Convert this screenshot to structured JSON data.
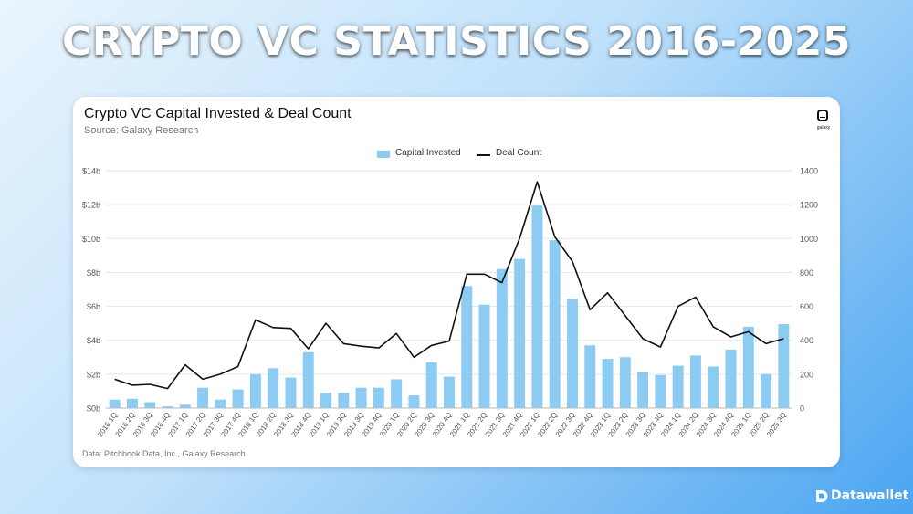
{
  "banner": {
    "title": "CRYPTO VC STATISTICS 2016-2025"
  },
  "logo": {
    "text": "galaxy"
  },
  "brand": {
    "label": "Datawallet"
  },
  "colors": {
    "bar": "#8ccbf2",
    "line": "#111111",
    "grid": "#e6e6e6"
  },
  "chart_data": {
    "type": "bar+line",
    "title": "Crypto VC Capital Invested & Deal Count",
    "subtitle": "Source: Galaxy Research",
    "footnote": "Data: Pitchbook Data, Inc., Galaxy Research",
    "legend": {
      "placement": "top-center",
      "entries": [
        "Capital Invested",
        "Deal Count"
      ]
    },
    "grid": true,
    "categories": [
      "2016 1Q",
      "2016 2Q",
      "2016 3Q",
      "2016 4Q",
      "2017 1Q",
      "2017 2Q",
      "2017 3Q",
      "2017 4Q",
      "2018 1Q",
      "2018 2Q",
      "2018 3Q",
      "2018 4Q",
      "2019 1Q",
      "2019 2Q",
      "2019 3Q",
      "2019 4Q",
      "2020 1Q",
      "2020 2Q",
      "2020 3Q",
      "2020 4Q",
      "2021 1Q",
      "2021 2Q",
      "2021 3Q",
      "2021 4Q",
      "2022 1Q",
      "2022 2Q",
      "2022 3Q",
      "2022 4Q",
      "2023 1Q",
      "2023 2Q",
      "2023 3Q",
      "2023 4Q",
      "2024 1Q",
      "2024 2Q",
      "2024 3Q",
      "2024 4Q",
      "2025 1Q",
      "2025 2Q",
      "2025 3Q"
    ],
    "y_left": {
      "ticks": [
        "$0b",
        "$2b",
        "$4b",
        "$6b",
        "$8b",
        "$10b",
        "$12b",
        "$14b"
      ],
      "range": [
        0,
        14
      ],
      "unit": "$b"
    },
    "y_right": {
      "ticks": [
        "0",
        "200",
        "400",
        "600",
        "800",
        "1000",
        "1200",
        "1400"
      ],
      "range": [
        0,
        1400
      ]
    },
    "series": [
      {
        "name": "Capital Invested",
        "type": "bar",
        "axis": "left",
        "values": [
          0.5,
          0.55,
          0.35,
          0.1,
          0.2,
          1.2,
          0.5,
          1.1,
          2.0,
          2.35,
          1.8,
          3.3,
          0.9,
          0.9,
          1.2,
          1.2,
          1.7,
          0.75,
          2.7,
          1.85,
          7.2,
          6.1,
          8.2,
          8.8,
          11.95,
          9.9,
          6.45,
          3.7,
          2.9,
          3.0,
          2.1,
          1.95,
          2.5,
          3.1,
          2.45,
          3.45,
          4.8,
          2.0,
          4.95
        ]
      },
      {
        "name": "Deal Count",
        "type": "line",
        "axis": "right",
        "values": [
          170,
          135,
          140,
          115,
          255,
          170,
          200,
          245,
          520,
          475,
          470,
          350,
          500,
          380,
          365,
          355,
          440,
          300,
          370,
          395,
          790,
          790,
          740,
          1000,
          1335,
          1010,
          865,
          580,
          680,
          545,
          410,
          360,
          600,
          655,
          480,
          420,
          450,
          380,
          410
        ]
      }
    ]
  }
}
